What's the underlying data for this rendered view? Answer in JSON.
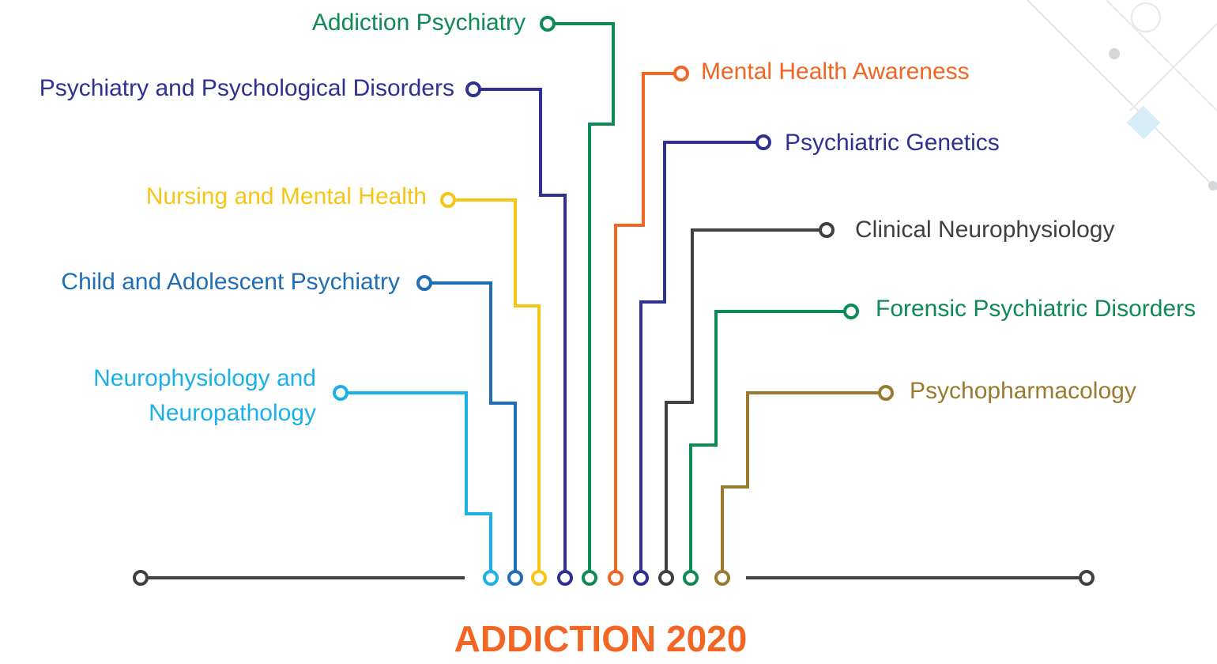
{
  "title": "ADDICTION 2020",
  "nodes": [
    {
      "label_lines": [
        "Neurophysiology and",
        "Neuropathology"
      ]
    },
    {
      "label": "Child and Adolescent Psychiatry"
    },
    {
      "label": "Nursing and Mental Health"
    },
    {
      "label": "Psychiatry and Psychological Disorders"
    },
    {
      "label": "Addiction Psychiatry"
    },
    {
      "label": "Mental Health Awareness"
    },
    {
      "label": "Psychiatric Genetics"
    },
    {
      "label": "Clinical Neurophysiology"
    },
    {
      "label": "Forensic Psychiatric Disorders"
    },
    {
      "label": "Psychopharmacology"
    }
  ]
}
